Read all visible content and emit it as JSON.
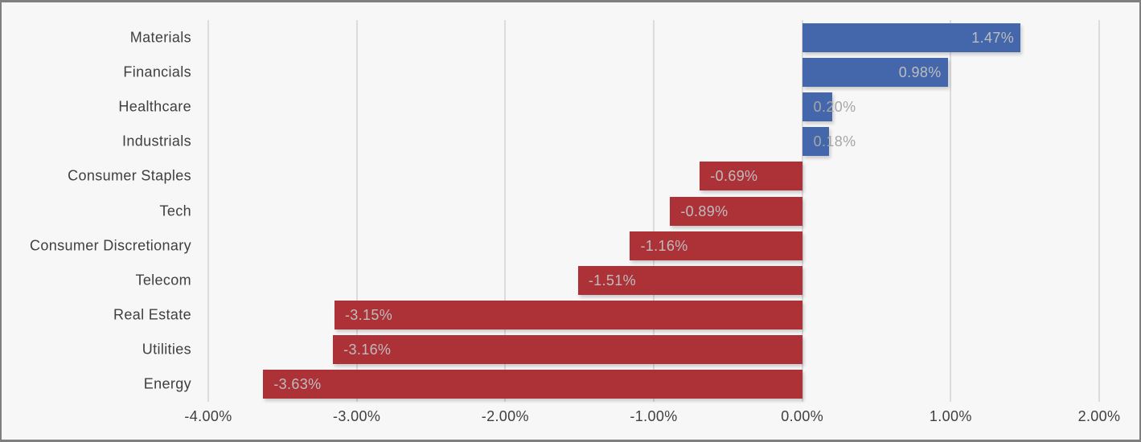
{
  "chart_data": {
    "type": "bar",
    "orientation": "horizontal",
    "title": "",
    "xlabel": "",
    "ylabel": "",
    "xlim": [
      -4,
      2
    ],
    "grid": "vertical",
    "legend": "none",
    "categories": [
      "Materials",
      "Financials",
      "Healthcare",
      "Industrials",
      "Consumer Staples",
      "Tech",
      "Consumer Discretionary",
      "Telecom",
      "Real Estate",
      "Utilities",
      "Energy"
    ],
    "values": [
      1.47,
      0.98,
      0.2,
      0.18,
      -0.69,
      -0.89,
      -1.16,
      -1.51,
      -3.15,
      -3.16,
      -3.63
    ],
    "value_labels": [
      "1.47%",
      "0.98%",
      "0.20%",
      "0.18%",
      "-0.69%",
      "-0.89%",
      "-1.16%",
      "-1.51%",
      "-3.15%",
      "-3.16%",
      "-3.63%"
    ],
    "x_ticks": {
      "values": [
        -4,
        -3,
        -2,
        -1,
        0,
        1,
        2
      ],
      "labels": [
        "-4.00%",
        "-3.00%",
        "-2.00%",
        "-1.00%",
        "0.00%",
        "1.00%",
        "2.00%"
      ]
    },
    "colors": {
      "positive_bar": "#4467AC",
      "negative_bar": "#AC3238",
      "label_inside_bar": "#BDBDBD",
      "label_overflow": "#A6A6A6",
      "gridline": "#DCDCDC",
      "axis_text": "#3F3F3F",
      "category_text": "#3F3F3F",
      "background": "#F7F7F7",
      "border": "#7F7F7F"
    }
  }
}
